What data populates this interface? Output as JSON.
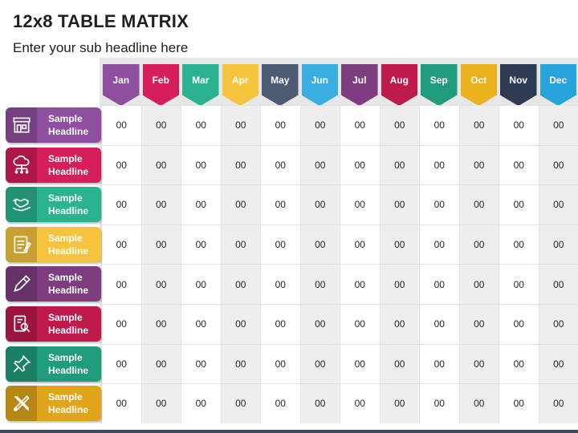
{
  "title": "12x8 TABLE MATRIX",
  "subtitle": "Enter your sub headline here",
  "months": [
    {
      "label": "Jan",
      "color": "#8e4f9e"
    },
    {
      "label": "Feb",
      "color": "#d51e5a"
    },
    {
      "label": "Mar",
      "color": "#2ab38e"
    },
    {
      "label": "Apr",
      "color": "#f5c33d"
    },
    {
      "label": "May",
      "color": "#4d5a74"
    },
    {
      "label": "Jun",
      "color": "#3aaee2"
    },
    {
      "label": "Jul",
      "color": "#7d3d7e"
    },
    {
      "label": "Aug",
      "color": "#bf1a4c"
    },
    {
      "label": "Sep",
      "color": "#1f9c7c"
    },
    {
      "label": "Oct",
      "color": "#ebb21d"
    },
    {
      "label": "Nov",
      "color": "#2f3b52"
    },
    {
      "label": "Dec",
      "color": "#27a4dc"
    }
  ],
  "rows": [
    {
      "label_line1": "Sample",
      "label_line2": "Headline",
      "color": "#8e4f9e",
      "icon": "store-icon",
      "values": [
        "00",
        "00",
        "00",
        "00",
        "00",
        "00",
        "00",
        "00",
        "00",
        "00",
        "00",
        "00"
      ]
    },
    {
      "label_line1": "Sample",
      "label_line2": "Headline",
      "color": "#d51e5a",
      "icon": "cloud-network-icon",
      "values": [
        "00",
        "00",
        "00",
        "00",
        "00",
        "00",
        "00",
        "00",
        "00",
        "00",
        "00",
        "00"
      ]
    },
    {
      "label_line1": "Sample",
      "label_line2": "Headline",
      "color": "#2ab38e",
      "icon": "handshake-icon",
      "values": [
        "00",
        "00",
        "00",
        "00",
        "00",
        "00",
        "00",
        "00",
        "00",
        "00",
        "00",
        "00"
      ]
    },
    {
      "label_line1": "Sample",
      "label_line2": "Headline",
      "color": "#f5c33d",
      "icon": "notes-icon",
      "values": [
        "00",
        "00",
        "00",
        "00",
        "00",
        "00",
        "00",
        "00",
        "00",
        "00",
        "00",
        "00"
      ]
    },
    {
      "label_line1": "Sample",
      "label_line2": "Headline",
      "color": "#7d3d7e",
      "icon": "pencil-icon",
      "values": [
        "00",
        "00",
        "00",
        "00",
        "00",
        "00",
        "00",
        "00",
        "00",
        "00",
        "00",
        "00"
      ]
    },
    {
      "label_line1": "Sample",
      "label_line2": "Headline",
      "color": "#bf1a4c",
      "icon": "document-search-icon",
      "values": [
        "00",
        "00",
        "00",
        "00",
        "00",
        "00",
        "00",
        "00",
        "00",
        "00",
        "00",
        "00"
      ]
    },
    {
      "label_line1": "Sample",
      "label_line2": "Headline",
      "color": "#1f9c7c",
      "icon": "pushpin-icon",
      "values": [
        "00",
        "00",
        "00",
        "00",
        "00",
        "00",
        "00",
        "00",
        "00",
        "00",
        "00",
        "00"
      ]
    },
    {
      "label_line1": "Sample",
      "label_line2": "Headline",
      "color": "#e0a51b",
      "icon": "tools-icon",
      "values": [
        "00",
        "00",
        "00",
        "00",
        "00",
        "00",
        "00",
        "00",
        "00",
        "00",
        "00",
        "00"
      ]
    }
  ]
}
